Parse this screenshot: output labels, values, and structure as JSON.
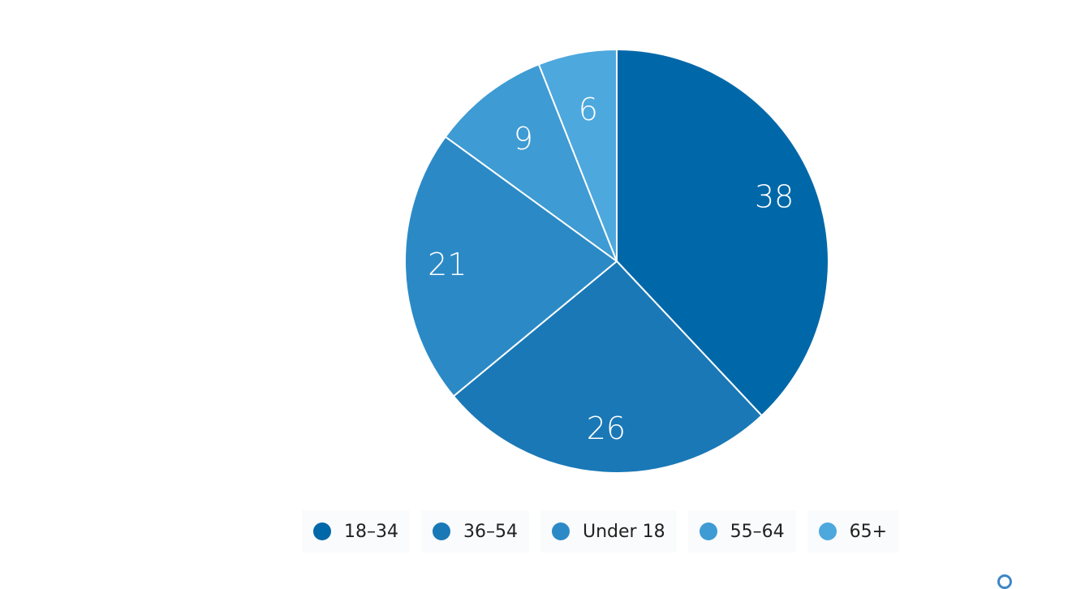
{
  "chart_data": {
    "type": "pie",
    "title": "",
    "categories": [
      "18-34",
      "36-54",
      "Under 18",
      "55-64",
      "65+"
    ],
    "values": [
      38,
      26,
      21,
      9,
      6
    ],
    "colors": [
      "#0068a9",
      "#1a78b6",
      "#2b8ac6",
      "#3e9bd3",
      "#4da8de"
    ],
    "legend_position": "bottom",
    "data_labels": [
      "38",
      "26",
      "21",
      "9",
      "6"
    ]
  },
  "legend": {
    "items": [
      {
        "label": "18–34"
      },
      {
        "label": "36–54"
      },
      {
        "label": "Under 18"
      },
      {
        "label": "55–64"
      },
      {
        "label": "65+"
      }
    ]
  }
}
